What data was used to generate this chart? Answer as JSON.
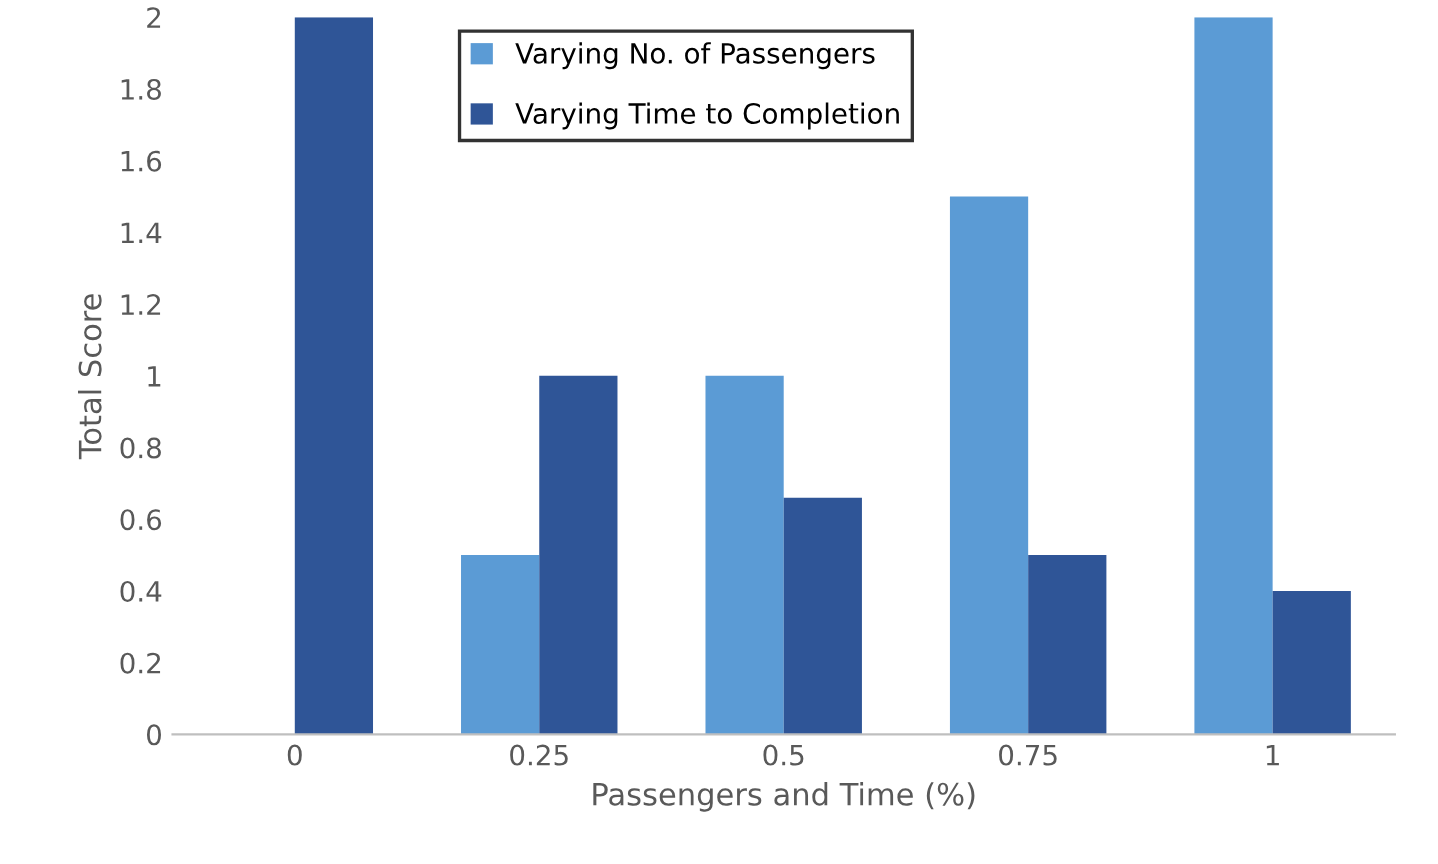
{
  "chart_data": {
    "type": "bar",
    "xlabel": "Passengers and Time (%)",
    "ylabel": "Total Score",
    "categories": [
      "0",
      "0.25",
      "0.5",
      "0.75",
      "1"
    ],
    "series": [
      {
        "name": "Varying No. of Passengers",
        "color": "#5b9bd5",
        "values": [
          0,
          0.5,
          1,
          1.5,
          2
        ]
      },
      {
        "name": "Varying Time to Completion",
        "color": "#2f5597",
        "values": [
          2,
          1,
          0.66,
          0.5,
          0.4
        ]
      }
    ],
    "ylim": [
      0,
      2
    ],
    "yticks": [
      0,
      0.2,
      0.4,
      0.6,
      0.8,
      1,
      1.2,
      1.4,
      1.6,
      1.8,
      2
    ],
    "grid": false,
    "legend": "top"
  }
}
